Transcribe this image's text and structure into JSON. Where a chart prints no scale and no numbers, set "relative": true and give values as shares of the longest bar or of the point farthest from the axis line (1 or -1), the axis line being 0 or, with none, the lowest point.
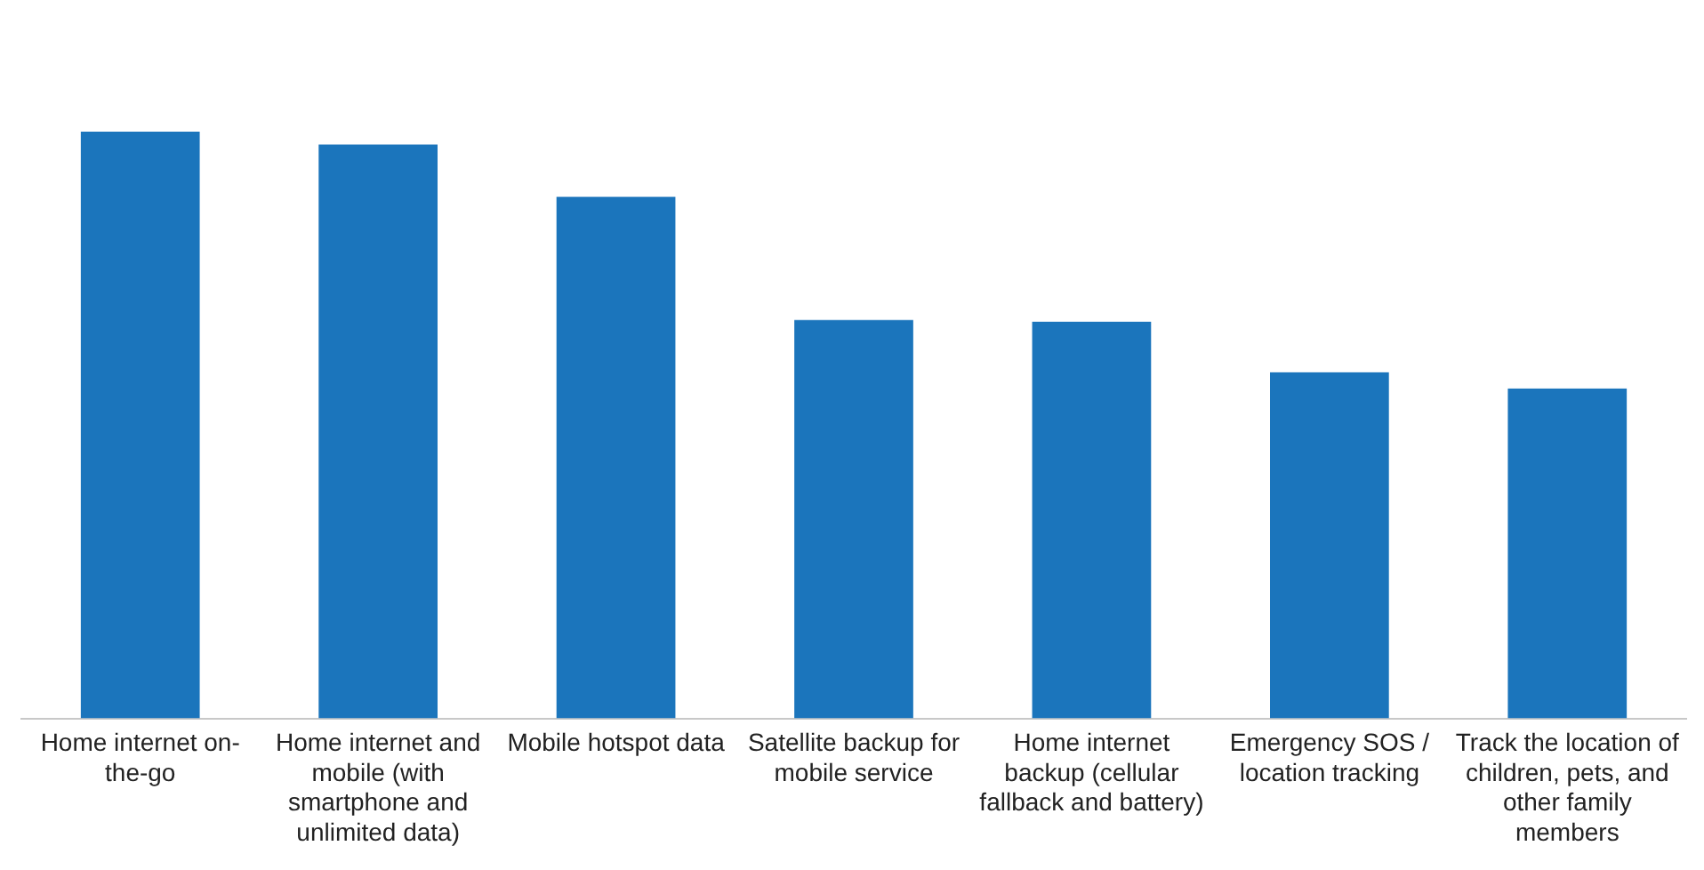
{
  "chart_data": {
    "type": "bar",
    "relative": true,
    "categories": [
      "Home internet on-the-go",
      "Home internet and mobile (with smartphone and unlimited data)",
      "Mobile hotspot data",
      "Satellite backup for mobile service",
      "Home internet backup (cellular fallback and battery)",
      "Emergency SOS / location tracking",
      "Track the location of children, pets, and other family members"
    ],
    "values": [
      1,
      0.978,
      0.889,
      0.679,
      0.676,
      0.59,
      0.562
    ],
    "color": "#1b75bc",
    "grid": false,
    "legend": false
  }
}
